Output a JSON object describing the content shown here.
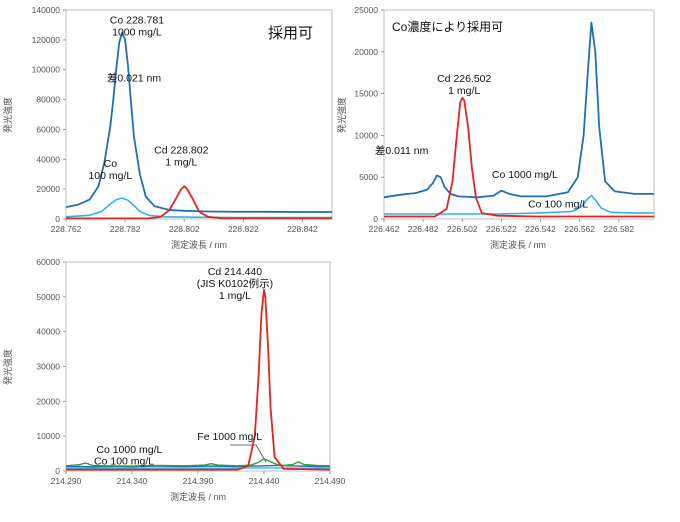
{
  "chart_data": [
    {
      "type": "line",
      "panel": "top-left",
      "xlabel": "測定波長 / nm",
      "ylabel": "発光強度",
      "xlim": [
        228.762,
        228.852
      ],
      "ylim": [
        0,
        140000
      ],
      "xticks": [
        "228.762",
        "228.782",
        "228.802",
        "228.822",
        "228.842"
      ],
      "yticks": [
        "0",
        "20000",
        "40000",
        "60000",
        "80000",
        "100000",
        "120000",
        "140000"
      ],
      "badge": "採用可",
      "annotations": [
        {
          "name": "co-peak",
          "lines": [
            "Co 228.781",
            "1000 mg/L"
          ],
          "x": 228.786,
          "y": 131000
        },
        {
          "name": "diff",
          "lines": [
            "差0.021 nm"
          ],
          "x": 228.785,
          "y": 92000
        },
        {
          "name": "cd-peak",
          "lines": [
            "Cd 228.802",
            "1 mg/L"
          ],
          "x": 228.801,
          "y": 44000
        },
        {
          "name": "co-low",
          "lines": [
            "Co",
            "100 mg/L"
          ],
          "x": 228.777,
          "y": 35000
        }
      ],
      "series": [
        {
          "color": "#1f6fb4",
          "width": 1.8,
          "x": [
            228.762,
            228.766,
            228.77,
            228.773,
            228.775,
            228.777,
            228.778,
            228.779,
            228.78,
            228.781,
            228.782,
            228.783,
            228.784,
            228.785,
            228.787,
            228.789,
            228.792,
            228.797,
            228.802,
            228.81,
            228.82,
            228.83,
            228.84,
            228.852
          ],
          "y": [
            8000,
            9500,
            13000,
            22000,
            38000,
            62000,
            80000,
            100000,
            118000,
            125000,
            120000,
            102000,
            78000,
            55000,
            30000,
            15000,
            8500,
            6000,
            5500,
            5000,
            4800,
            4800,
            4700,
            4700
          ]
        },
        {
          "color": "#29b6e8",
          "width": 1.6,
          "x": [
            228.762,
            228.77,
            228.774,
            228.777,
            228.779,
            228.781,
            228.783,
            228.785,
            228.787,
            228.79,
            228.795,
            228.805,
            228.82,
            228.835,
            228.852
          ],
          "y": [
            1500,
            2500,
            5000,
            10000,
            13000,
            14000,
            12500,
            9000,
            5000,
            2500,
            1500,
            1200,
            1000,
            1000,
            1000
          ]
        },
        {
          "color": "#e8231f",
          "width": 1.8,
          "x": [
            228.762,
            228.79,
            228.794,
            228.797,
            228.799,
            228.801,
            228.802,
            228.803,
            228.805,
            228.807,
            228.81,
            228.815,
            228.83,
            228.852
          ],
          "y": [
            400,
            400,
            1500,
            6000,
            13000,
            20000,
            22000,
            20000,
            13000,
            5000,
            1500,
            500,
            400,
            400
          ]
        }
      ]
    },
    {
      "type": "line",
      "panel": "top-right",
      "xlabel": "測定波長 / nm",
      "ylabel": "発光強度",
      "xlim": [
        226.462,
        226.6
      ],
      "ylim": [
        0,
        25000
      ],
      "xticks": [
        "226.462",
        "226.482",
        "226.502",
        "226.522",
        "226.542",
        "226.562",
        "226.582"
      ],
      "yticks": [
        "0",
        "5000",
        "10000",
        "15000",
        "20000",
        "25000"
      ],
      "badge": "Co濃度により採用可",
      "annotations": [
        {
          "name": "cd-peak",
          "lines": [
            "Cd 226.502",
            "1 mg/L"
          ],
          "x": 226.503,
          "y": 16400
        },
        {
          "name": "diff",
          "lines": [
            "差0.011 nm"
          ],
          "x": 226.471,
          "y": 7800
        },
        {
          "name": "co-high",
          "lines": [
            "Co 1000 mg/L"
          ],
          "x": 226.534,
          "y": 4900
        },
        {
          "name": "co-low",
          "lines": [
            "Co 100 mg/L"
          ],
          "x": 226.551,
          "y": 1400
        }
      ],
      "series": [
        {
          "color": "#1f6fb4",
          "width": 1.8,
          "x": [
            226.462,
            226.47,
            226.478,
            226.484,
            226.487,
            226.489,
            226.491,
            226.493,
            226.496,
            226.5,
            226.51,
            226.518,
            226.522,
            226.526,
            226.532,
            226.545,
            226.556,
            226.561,
            226.564,
            226.566,
            226.568,
            226.57,
            226.572,
            226.575,
            226.58,
            226.59,
            226.6
          ],
          "y": [
            2600,
            2900,
            3100,
            3500,
            4300,
            5200,
            5000,
            3800,
            3000,
            2700,
            2600,
            2800,
            3400,
            3000,
            2700,
            2700,
            3200,
            5000,
            10000,
            17000,
            23500,
            20000,
            11000,
            4500,
            3300,
            3000,
            3000
          ]
        },
        {
          "color": "#29b6e8",
          "width": 1.6,
          "x": [
            226.462,
            226.48,
            226.5,
            226.52,
            226.54,
            226.558,
            226.563,
            226.566,
            226.568,
            226.57,
            226.573,
            226.578,
            226.59,
            226.6
          ],
          "y": [
            600,
            600,
            600,
            600,
            700,
            900,
            1500,
            2400,
            2800,
            2300,
            1300,
            800,
            700,
            700
          ]
        },
        {
          "color": "#e8231f",
          "width": 1.8,
          "x": [
            226.462,
            226.488,
            226.494,
            226.497,
            226.499,
            226.501,
            226.502,
            226.503,
            226.505,
            226.507,
            226.509,
            226.512,
            226.52,
            226.54,
            226.56,
            226.6
          ],
          "y": [
            300,
            300,
            1200,
            4500,
            9500,
            14000,
            14500,
            14200,
            11000,
            6000,
            2500,
            700,
            400,
            300,
            300,
            300
          ]
        }
      ]
    },
    {
      "type": "line",
      "panel": "bottom-left",
      "xlabel": "測定波長 / nm",
      "ylabel": "発光強度",
      "xlim": [
        214.29,
        214.49
      ],
      "ylim": [
        0,
        60000
      ],
      "xticks": [
        "214.290",
        "214.340",
        "214.390",
        "214.440",
        "214.490"
      ],
      "yticks": [
        "0",
        "10000",
        "20000",
        "30000",
        "40000",
        "50000",
        "60000"
      ],
      "annotations": [
        {
          "name": "cd-peak",
          "lines": [
            "Cd 214.440",
            "(JIS K0102例示)",
            "1 mg/L"
          ],
          "x": 214.418,
          "y": 56200
        },
        {
          "name": "fe",
          "lines": [
            "Fe 1000 mg/L"
          ],
          "x": 214.414,
          "y": 8900
        },
        {
          "name": "co-high",
          "lines": [
            "Co 1000 mg/L"
          ],
          "x": 214.338,
          "y": 5200
        },
        {
          "name": "co-low",
          "lines": [
            "Co 100 mg/L"
          ],
          "x": 214.334,
          "y": 1800
        }
      ],
      "series": [
        {
          "color": "#1f6fb4",
          "width": 1.4,
          "x": [
            214.29,
            214.3,
            214.31,
            214.32,
            214.34,
            214.36,
            214.38,
            214.4,
            214.42,
            214.43,
            214.44,
            214.45,
            214.46,
            214.48,
            214.49
          ],
          "y": [
            1200,
            1300,
            1200,
            1300,
            1200,
            1400,
            1300,
            1400,
            1300,
            1400,
            1500,
            1600,
            1500,
            1300,
            1300
          ]
        },
        {
          "color": "#29b6e8",
          "width": 1.4,
          "x": [
            214.29,
            214.31,
            214.33,
            214.35,
            214.37,
            214.39,
            214.41,
            214.43,
            214.45,
            214.47,
            214.49
          ],
          "y": [
            700,
            800,
            700,
            800,
            900,
            800,
            800,
            900,
            900,
            800,
            800
          ]
        },
        {
          "color": "#2e9e3e",
          "width": 1.4,
          "x": [
            214.29,
            214.3,
            214.305,
            214.31,
            214.32,
            214.34,
            214.36,
            214.38,
            214.395,
            214.4,
            214.405,
            214.42,
            214.43,
            214.436,
            214.44,
            214.445,
            214.45,
            214.455,
            214.462,
            214.466,
            214.47,
            214.48,
            214.49
          ],
          "y": [
            1500,
            1800,
            2300,
            1600,
            1500,
            1400,
            1600,
            1500,
            1700,
            2100,
            1700,
            1500,
            1700,
            2500,
            3500,
            2700,
            1800,
            1600,
            1900,
            2600,
            1900,
            1600,
            1500
          ]
        },
        {
          "color": "#e8231f",
          "width": 1.8,
          "x": [
            214.29,
            214.42,
            214.428,
            214.433,
            214.436,
            214.438,
            214.44,
            214.441,
            214.443,
            214.445,
            214.448,
            214.455,
            214.49
          ],
          "y": [
            400,
            400,
            1500,
            10000,
            28000,
            45000,
            52000,
            50000,
            36000,
            18000,
            4000,
            600,
            400
          ]
        }
      ]
    }
  ]
}
